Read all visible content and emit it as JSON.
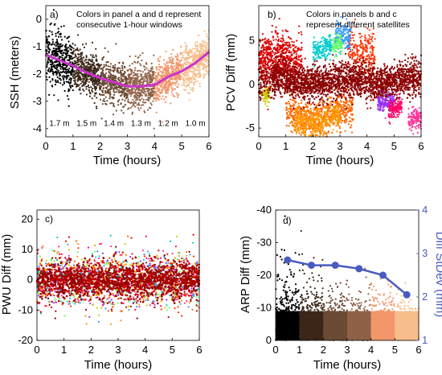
{
  "chart_data": [
    {
      "id": "a",
      "type": "scatter",
      "panel_label": "a)",
      "note_lines": [
        "Colors in panel a and d represent",
        "consecutive 1-hour windows"
      ],
      "xlabel": "Time (hours)",
      "ylabel": "SSH (meters)",
      "xlim": [
        0,
        6
      ],
      "ylim": [
        -4.3,
        0.5
      ],
      "xticks": [
        0,
        1,
        2,
        3,
        4,
        5,
        6
      ],
      "yticks": [
        -4,
        -3,
        -2,
        -1,
        0
      ],
      "window_colors": [
        "#000000",
        "#3b2618",
        "#6b4a33",
        "#8f6247",
        "#f2966b",
        "#f7bd8a"
      ],
      "window_annotations": [
        "1.7 m",
        "1.5 m",
        "1.4 m",
        "1.3 m",
        "1.2 m",
        "1.0 m"
      ],
      "mean_line": {
        "color": "#cc33cc",
        "x": [
          0,
          0.5,
          1,
          1.5,
          2,
          2.5,
          3,
          3.5,
          4,
          4.5,
          5,
          5.5,
          6
        ],
        "y": [
          -1.3,
          -1.5,
          -1.7,
          -1.95,
          -2.15,
          -2.3,
          -2.45,
          -2.45,
          -2.4,
          -2.1,
          -1.9,
          -1.6,
          -1.2
        ]
      },
      "spread": 1.0
    },
    {
      "id": "b",
      "type": "scatter",
      "panel_label": "b)",
      "note_lines": [
        "Colors in panels b and c",
        "represent different satellites"
      ],
      "xlabel": "Time (hours)",
      "ylabel": "PCV Diff (mm)",
      "xlim": [
        0,
        6
      ],
      "ylim": [
        -6,
        9
      ],
      "xticks": [
        0,
        1,
        2,
        3,
        4,
        5,
        6
      ],
      "yticks": [
        -5,
        0,
        5
      ]
    },
    {
      "id": "c",
      "type": "scatter",
      "panel_label": "c)",
      "xlabel": "Time (hours)",
      "ylabel": "PWU Diff (mm)",
      "xlim": [
        0,
        6
      ],
      "ylim": [
        -20,
        23
      ],
      "xticks": [
        0,
        1,
        2,
        3,
        4,
        5,
        6
      ],
      "yticks": [
        -20,
        -10,
        0,
        10,
        20
      ]
    },
    {
      "id": "d",
      "type": "scatter",
      "panel_label": "d)",
      "xlabel": "Time (hours)",
      "ylabel": "ARP Diff (mm)",
      "ylabel_right": "Diff StDev (mm)",
      "xlim": [
        0,
        6
      ],
      "ylim": [
        0,
        -40
      ],
      "y_reversed": true,
      "xticks": [
        0,
        1,
        2,
        3,
        4,
        5,
        6
      ],
      "yticks": [
        -40,
        -30,
        -20,
        -10,
        0
      ],
      "yticks_right": [
        1,
        2,
        3,
        4
      ],
      "ylim_right": [
        1,
        4
      ],
      "window_colors": [
        "#000000",
        "#3b2618",
        "#6b4a33",
        "#8f6247",
        "#f2966b",
        "#f7bd8a"
      ],
      "stdev_series": {
        "color": "#4a5bbf",
        "x": [
          0.5,
          1.5,
          2.5,
          3.5,
          4.5,
          5.5
        ],
        "y": [
          2.85,
          2.73,
          2.73,
          2.65,
          2.5,
          2.05
        ]
      }
    }
  ],
  "colors": {
    "satellite_palette": [
      "#cc0000",
      "#e60000",
      "#ff3300",
      "#8b0000",
      "#ff6600",
      "#ff9900",
      "#ff3399",
      "#3399ff",
      "#00cccc",
      "#66ff66",
      "#cccc00",
      "#9933ff",
      "#ff0066"
    ],
    "pwu_core": "#990000",
    "pcv_core": "#8b0000"
  }
}
